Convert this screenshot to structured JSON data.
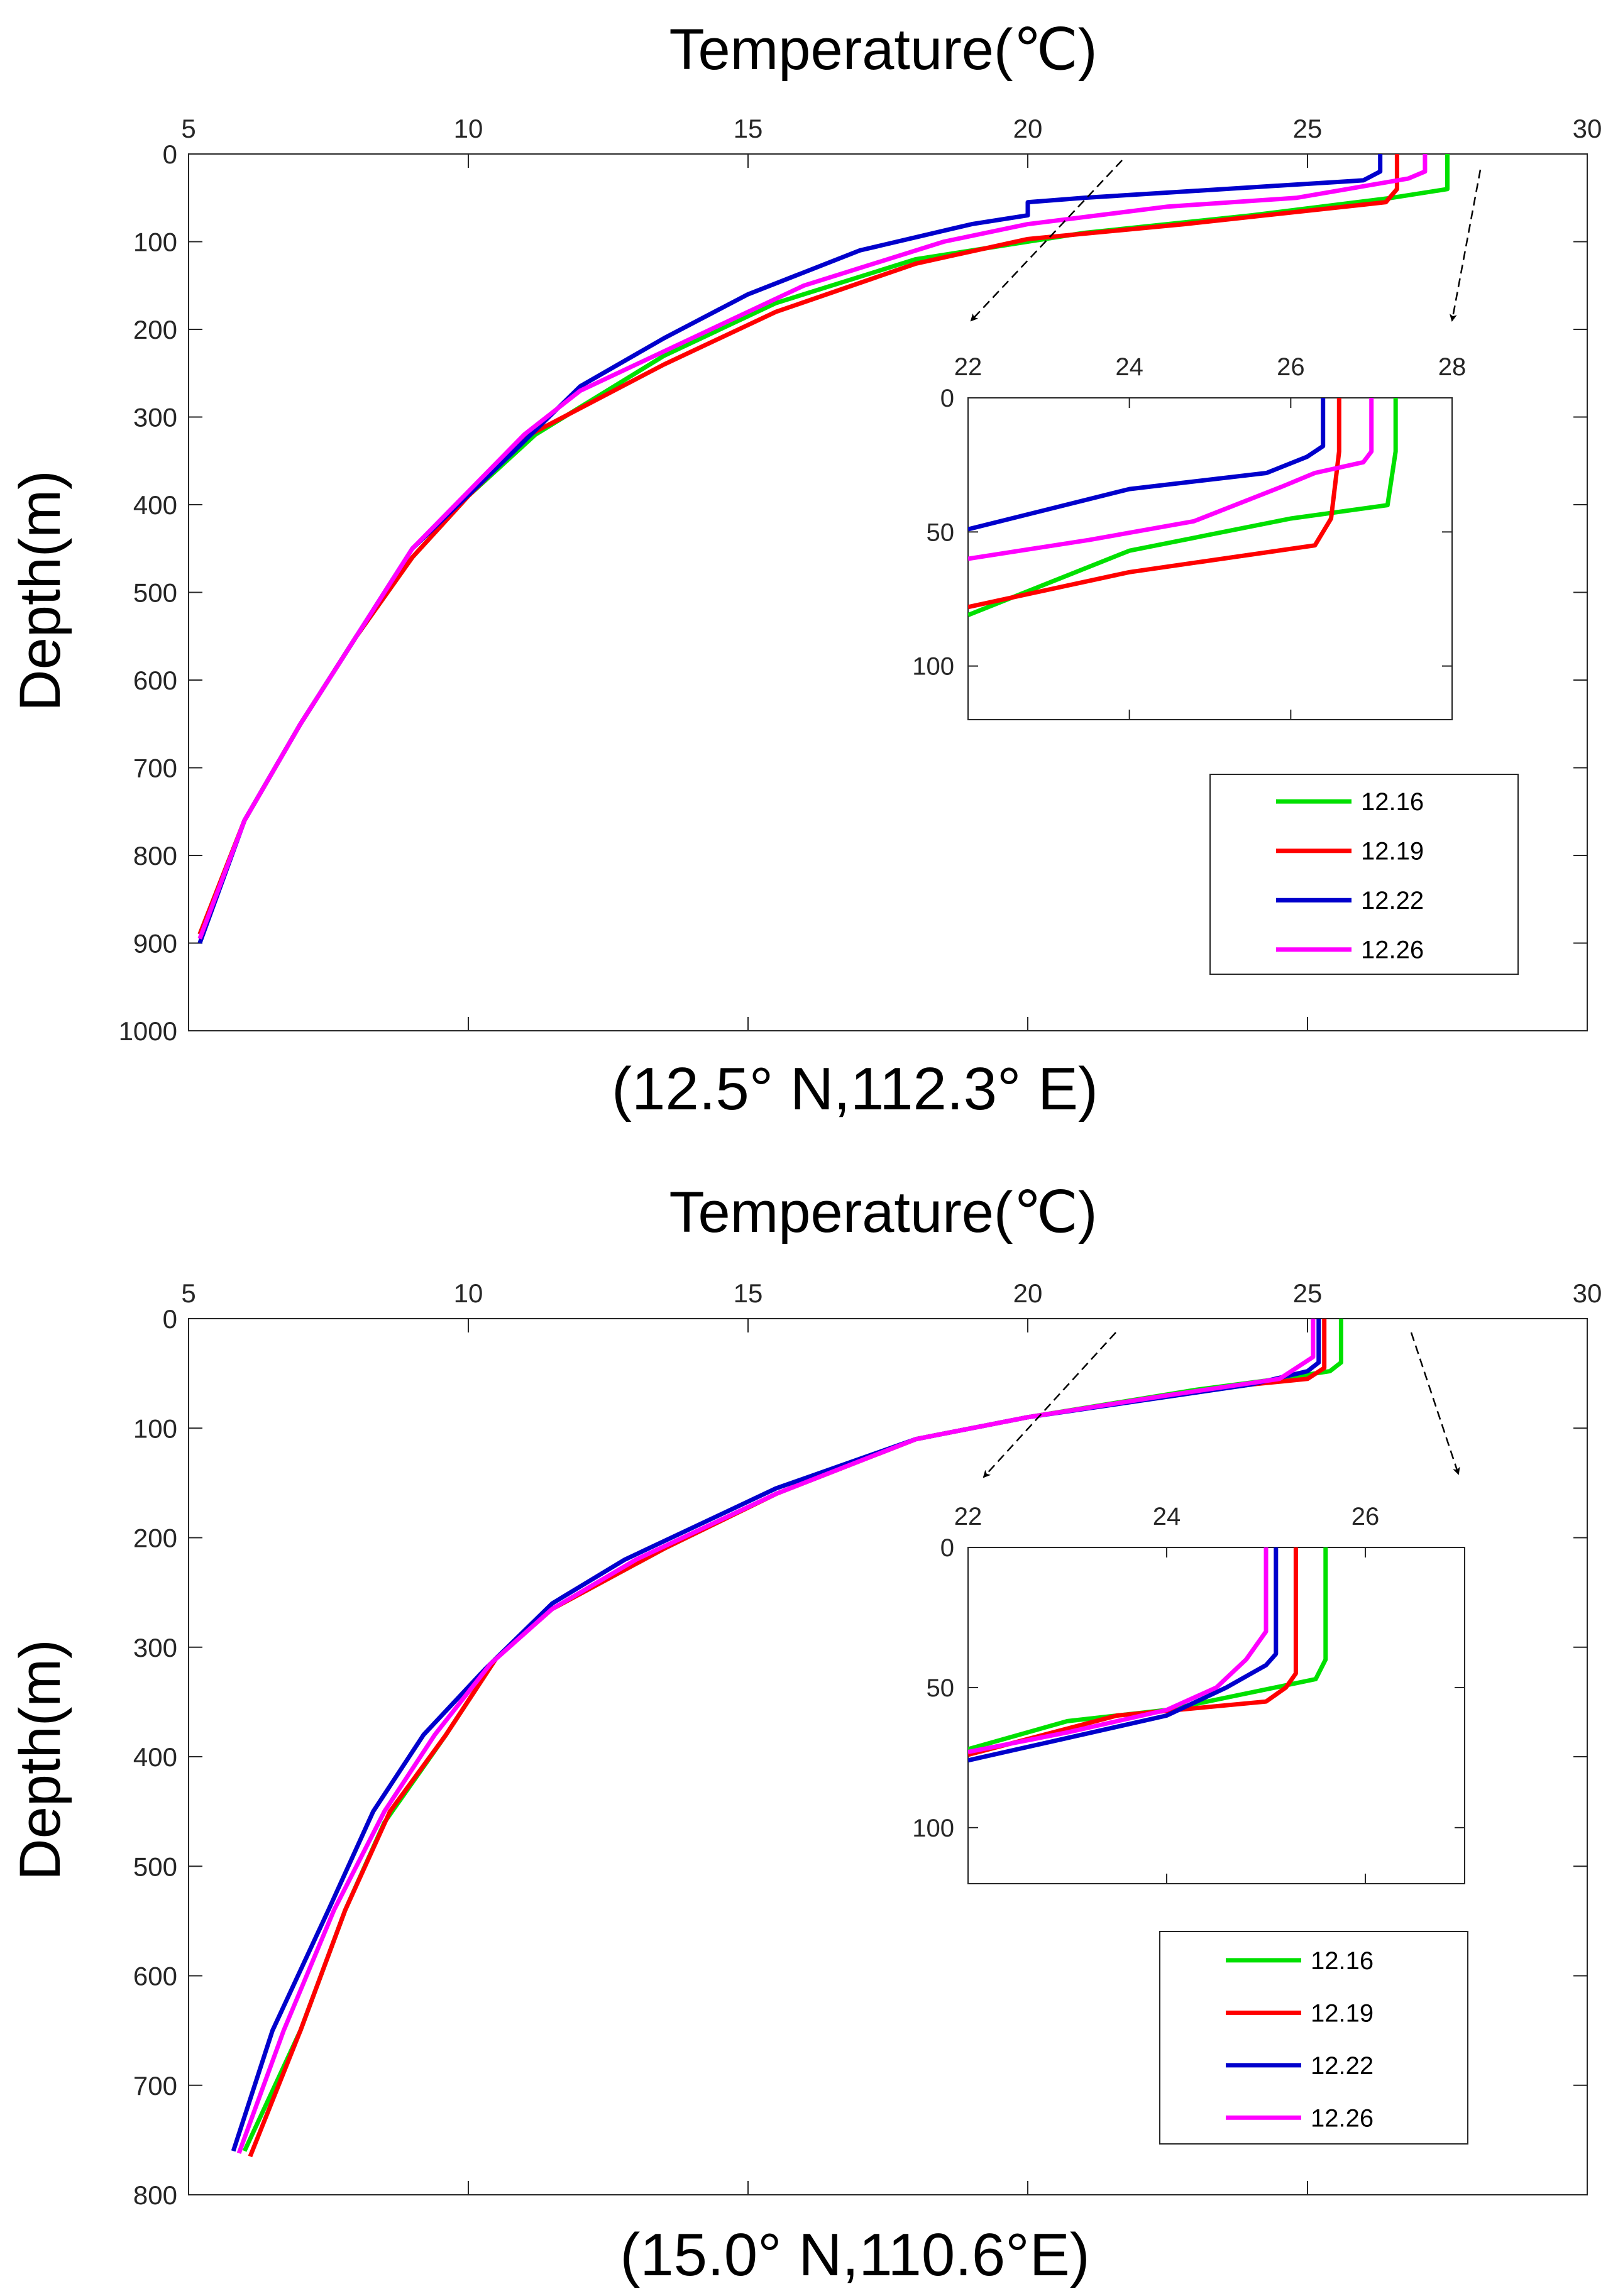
{
  "chart_data": [
    {
      "type": "line",
      "title": "Temperature(℃)",
      "caption": "(12.5° N,112.3° E)",
      "xlabel": "Temperature(℃)",
      "ylabel": "Depth(m)",
      "xlim": [
        5,
        30
      ],
      "ylim": [
        0,
        1000
      ],
      "y_reversed": true,
      "x_ticks": [
        5,
        10,
        15,
        20,
        25,
        30
      ],
      "y_ticks": [
        0,
        100,
        200,
        300,
        400,
        500,
        600,
        700,
        800,
        900,
        1000
      ],
      "series": [
        {
          "name": "12.16",
          "color": "#00e000",
          "points": [
            [
              27.5,
              0
            ],
            [
              27.5,
              40
            ],
            [
              26.5,
              50
            ],
            [
              24.0,
              70
            ],
            [
              21.0,
              90
            ],
            [
              18.0,
              120
            ],
            [
              15.5,
              170
            ],
            [
              13.5,
              230
            ],
            [
              11.2,
              320
            ],
            [
              10.0,
              390
            ],
            [
              9.0,
              460
            ],
            [
              8.0,
              550
            ],
            [
              7.0,
              650
            ],
            [
              6.0,
              760
            ],
            [
              5.2,
              890
            ]
          ]
        },
        {
          "name": "12.19",
          "color": "#ff0000",
          "points": [
            [
              26.6,
              0
            ],
            [
              26.6,
              40
            ],
            [
              26.4,
              55
            ],
            [
              22.8,
              80
            ],
            [
              20.0,
              97
            ],
            [
              18.0,
              125
            ],
            [
              15.5,
              180
            ],
            [
              13.5,
              240
            ],
            [
              11.1,
              320
            ],
            [
              10.0,
              390
            ],
            [
              9.0,
              460
            ],
            [
              8.0,
              550
            ],
            [
              7.0,
              650
            ],
            [
              6.0,
              760
            ],
            [
              5.2,
              890
            ]
          ]
        },
        {
          "name": "12.22",
          "color": "#0000cc",
          "points": [
            [
              26.3,
              0
            ],
            [
              26.3,
              20
            ],
            [
              26.0,
              30
            ],
            [
              21.0,
              50
            ],
            [
              20.0,
              55
            ],
            [
              20.0,
              70
            ],
            [
              19.0,
              80
            ],
            [
              17.0,
              110
            ],
            [
              15.0,
              160
            ],
            [
              13.5,
              210
            ],
            [
              12.0,
              265
            ],
            [
              10.8,
              340
            ],
            [
              9.0,
              450
            ],
            [
              8.0,
              550
            ],
            [
              7.0,
              650
            ],
            [
              6.0,
              760
            ],
            [
              5.2,
              900
            ]
          ]
        },
        {
          "name": "12.26",
          "color": "#ff00ff",
          "points": [
            [
              27.1,
              0
            ],
            [
              27.1,
              20
            ],
            [
              26.8,
              28
            ],
            [
              24.8,
              50
            ],
            [
              22.5,
              60
            ],
            [
              20.0,
              80
            ],
            [
              18.5,
              100
            ],
            [
              16.0,
              150
            ],
            [
              14.0,
              210
            ],
            [
              12.0,
              270
            ],
            [
              11.0,
              320
            ],
            [
              9.0,
              450
            ],
            [
              8.0,
              550
            ],
            [
              7.0,
              650
            ],
            [
              6.0,
              760
            ],
            [
              5.2,
              895
            ]
          ]
        }
      ],
      "inset": {
        "xlim": [
          22,
          28
        ],
        "ylim": [
          0,
          120
        ],
        "y_reversed": true,
        "x_ticks": [
          22,
          24,
          26,
          28
        ],
        "y_ticks": [
          0,
          50,
          100
        ],
        "series": [
          {
            "name": "12.16",
            "color": "#00e000",
            "points": [
              [
                27.3,
                0
              ],
              [
                27.3,
                20
              ],
              [
                27.2,
                40
              ],
              [
                26.0,
                45
              ],
              [
                24.0,
                57
              ],
              [
                22.0,
                81
              ]
            ]
          },
          {
            "name": "12.19",
            "color": "#ff0000",
            "points": [
              [
                26.6,
                0
              ],
              [
                26.6,
                20
              ],
              [
                26.5,
                45
              ],
              [
                26.3,
                55
              ],
              [
                24.0,
                65
              ],
              [
                22.0,
                78
              ]
            ]
          },
          {
            "name": "12.22",
            "color": "#0000cc",
            "points": [
              [
                26.4,
                0
              ],
              [
                26.4,
                18
              ],
              [
                26.2,
                22
              ],
              [
                25.7,
                28
              ],
              [
                24.0,
                34
              ],
              [
                22.0,
                49
              ]
            ]
          },
          {
            "name": "12.26",
            "color": "#ff00ff",
            "points": [
              [
                27.0,
                0
              ],
              [
                27.0,
                20
              ],
              [
                26.9,
                24
              ],
              [
                26.3,
                28
              ],
              [
                25.9,
                33
              ],
              [
                24.8,
                46
              ],
              [
                23.5,
                53
              ],
              [
                22.0,
                60
              ]
            ]
          }
        ]
      },
      "legend": [
        "12.16",
        "12.19",
        "12.22",
        "12.26"
      ]
    },
    {
      "type": "line",
      "title": "Temperature(℃)",
      "caption": "(15.0° N,110.6°E)",
      "xlabel": "Temperature(℃)",
      "ylabel": "Depth(m)",
      "xlim": [
        5,
        30
      ],
      "ylim": [
        0,
        800
      ],
      "y_reversed": true,
      "x_ticks": [
        5,
        10,
        15,
        20,
        25,
        30
      ],
      "y_ticks": [
        0,
        100,
        200,
        300,
        400,
        500,
        600,
        700,
        800
      ],
      "series": [
        {
          "name": "12.16",
          "color": "#00e000",
          "points": [
            [
              25.6,
              0
            ],
            [
              25.6,
              40
            ],
            [
              25.4,
              48
            ],
            [
              24.5,
              55
            ],
            [
              23.0,
              65
            ],
            [
              20.0,
              90
            ],
            [
              18.0,
              110
            ],
            [
              15.5,
              160
            ],
            [
              13.5,
              210
            ],
            [
              11.5,
              265
            ],
            [
              10.5,
              310
            ],
            [
              9.6,
              380
            ],
            [
              8.5,
              460
            ],
            [
              7.8,
              540
            ],
            [
              7.0,
              650
            ],
            [
              6.0,
              760
            ]
          ]
        },
        {
          "name": "12.19",
          "color": "#ff0000",
          "points": [
            [
              25.3,
              0
            ],
            [
              25.3,
              45
            ],
            [
              25.0,
              55
            ],
            [
              24.0,
              60
            ],
            [
              22.5,
              70
            ],
            [
              20.0,
              90
            ],
            [
              18.0,
              110
            ],
            [
              15.5,
              160
            ],
            [
              13.5,
              210
            ],
            [
              11.5,
              265
            ],
            [
              10.5,
              310
            ],
            [
              9.6,
              380
            ],
            [
              8.6,
              450
            ],
            [
              7.8,
              540
            ],
            [
              7.0,
              650
            ],
            [
              6.1,
              765
            ]
          ]
        },
        {
          "name": "12.22",
          "color": "#0000cc",
          "points": [
            [
              25.2,
              0
            ],
            [
              25.2,
              40
            ],
            [
              25.0,
              48
            ],
            [
              24.0,
              60
            ],
            [
              22.0,
              75
            ],
            [
              20.0,
              90
            ],
            [
              18.0,
              110
            ],
            [
              15.5,
              155
            ],
            [
              12.8,
              220
            ],
            [
              11.5,
              260
            ],
            [
              10.3,
              320
            ],
            [
              9.2,
              380
            ],
            [
              8.3,
              450
            ],
            [
              7.5,
              540
            ],
            [
              6.5,
              650
            ],
            [
              5.8,
              760
            ]
          ]
        },
        {
          "name": "12.26",
          "color": "#ff00ff",
          "points": [
            [
              25.1,
              0
            ],
            [
              25.1,
              35
            ],
            [
              24.8,
              45
            ],
            [
              24.5,
              55
            ],
            [
              22.5,
              70
            ],
            [
              20.0,
              90
            ],
            [
              18.0,
              110
            ],
            [
              15.5,
              160
            ],
            [
              13.0,
              220
            ],
            [
              11.5,
              265
            ],
            [
              10.4,
              315
            ],
            [
              9.4,
              380
            ],
            [
              8.5,
              450
            ],
            [
              7.6,
              540
            ],
            [
              6.7,
              650
            ],
            [
              5.9,
              762
            ]
          ]
        }
      ],
      "inset": {
        "xlim": [
          22,
          27
        ],
        "ylim": [
          0,
          120
        ],
        "y_reversed": true,
        "x_ticks": [
          22,
          24,
          26
        ],
        "y_ticks": [
          0,
          50,
          100
        ],
        "series": [
          {
            "name": "12.16",
            "color": "#00e000",
            "points": [
              [
                25.6,
                0
              ],
              [
                25.6,
                40
              ],
              [
                25.5,
                47
              ],
              [
                24.0,
                58
              ],
              [
                23.0,
                62
              ],
              [
                22.0,
                72
              ]
            ]
          },
          {
            "name": "12.19",
            "color": "#ff0000",
            "points": [
              [
                25.3,
                0
              ],
              [
                25.3,
                45
              ],
              [
                25.2,
                50
              ],
              [
                25.0,
                55
              ],
              [
                23.5,
                60
              ],
              [
                22.0,
                74
              ]
            ]
          },
          {
            "name": "12.22",
            "color": "#0000cc",
            "points": [
              [
                25.1,
                0
              ],
              [
                25.1,
                38
              ],
              [
                25.0,
                42
              ],
              [
                24.6,
                50
              ],
              [
                24.0,
                60
              ],
              [
                23.0,
                68
              ],
              [
                22.0,
                76
              ]
            ]
          },
          {
            "name": "12.26",
            "color": "#ff00ff",
            "points": [
              [
                25.0,
                0
              ],
              [
                25.0,
                30
              ],
              [
                24.8,
                40
              ],
              [
                24.5,
                50
              ],
              [
                24.0,
                58
              ],
              [
                23.0,
                66
              ],
              [
                22.0,
                73
              ]
            ]
          }
        ]
      },
      "legend": [
        "12.16",
        "12.19",
        "12.22",
        "12.26"
      ]
    }
  ]
}
